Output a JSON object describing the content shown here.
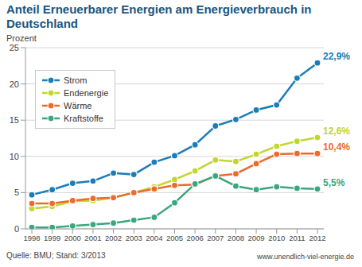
{
  "chart_data": {
    "type": "line",
    "title": "Anteil Erneuerbarer Energien am Energieverbrauch in Deutschland",
    "y_label": "Prozent",
    "source": "Quelle: BMU; Stand: 3/2013",
    "website": "www.unendlich-viel-energie.de",
    "categories": [
      "1998",
      "1999",
      "2000",
      "2001",
      "2002",
      "2003",
      "2004",
      "2005",
      "2006",
      "2007",
      "2008",
      "2009",
      "2010",
      "2011",
      "2012"
    ],
    "series": [
      {
        "name": "Strom",
        "color": "#1b7db8",
        "values": [
          4.7,
          5.4,
          6.3,
          6.6,
          7.7,
          7.5,
          9.2,
          10.1,
          11.6,
          14.2,
          15.1,
          16.4,
          17.1,
          20.8,
          22.9
        ],
        "value_labels": [
          null,
          null,
          null,
          null,
          null,
          null,
          null,
          null,
          null,
          null,
          null,
          null,
          null,
          null,
          "22,9%"
        ]
      },
      {
        "name": "Endenergie",
        "color": "#c2d62e",
        "values": [
          2.8,
          3.1,
          3.8,
          3.9,
          4.3,
          5.0,
          5.8,
          6.8,
          8.0,
          9.5,
          9.3,
          10.3,
          11.4,
          12.1,
          12.6
        ],
        "value_labels": [
          null,
          null,
          null,
          null,
          null,
          null,
          null,
          null,
          null,
          null,
          null,
          null,
          null,
          null,
          "12,6%"
        ]
      },
      {
        "name": "Wärme",
        "color": "#ee6a2c",
        "values": [
          3.5,
          3.5,
          3.9,
          4.2,
          4.3,
          5.0,
          5.5,
          6.0,
          6.1,
          7.3,
          7.6,
          9.0,
          10.3,
          10.4,
          10.4
        ],
        "value_labels": [
          null,
          null,
          null,
          null,
          null,
          null,
          null,
          null,
          null,
          null,
          null,
          null,
          null,
          null,
          "10,4%"
        ]
      },
      {
        "name": "Kraftstoffe",
        "color": "#3aa77c",
        "values": [
          0.2,
          0.2,
          0.4,
          0.6,
          0.8,
          1.2,
          1.6,
          3.6,
          6.2,
          7.3,
          5.9,
          5.4,
          5.8,
          5.6,
          5.5
        ],
        "value_labels": [
          null,
          null,
          null,
          null,
          null,
          null,
          null,
          null,
          null,
          null,
          null,
          null,
          null,
          null,
          "5,5%"
        ]
      }
    ],
    "ylim": [
      0,
      25
    ],
    "yticks": [
      0,
      5,
      10,
      15,
      20,
      25
    ],
    "grid": true,
    "legend": "upper left",
    "marker": "circle"
  }
}
